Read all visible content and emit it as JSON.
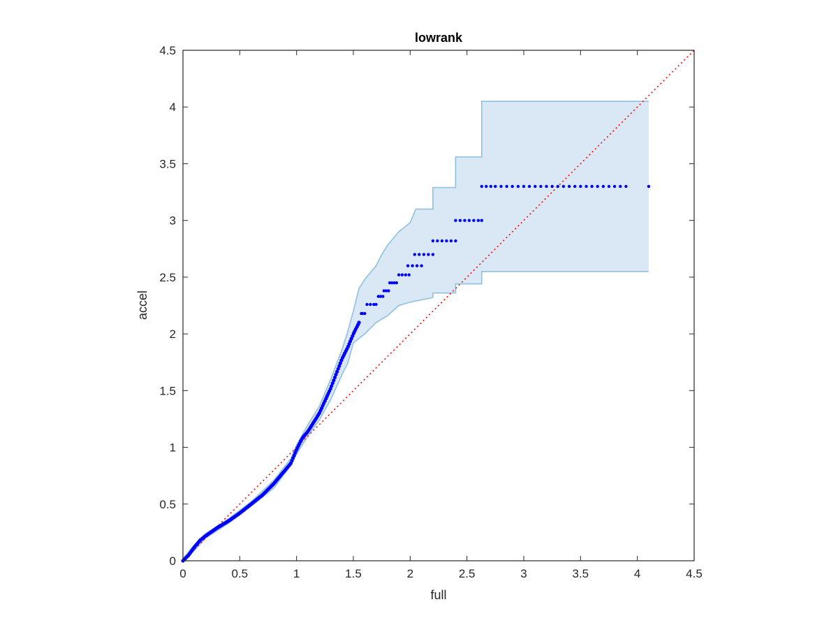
{
  "chart_data": {
    "type": "scatter",
    "title": "lowrank",
    "xlabel": "full",
    "ylabel": "accel",
    "xlim": [
      0,
      4.5
    ],
    "ylim": [
      0,
      4.5
    ],
    "xticks": [
      0,
      0.5,
      1,
      1.5,
      2,
      2.5,
      3,
      3.5,
      4,
      4.5
    ],
    "yticks": [
      0,
      0.5,
      1,
      1.5,
      2,
      2.5,
      3,
      3.5,
      4,
      4.5
    ],
    "xtick_labels": [
      "0",
      "0.5",
      "1",
      "1.5",
      "2",
      "2.5",
      "3",
      "3.5",
      "4",
      "4.5"
    ],
    "ytick_labels": [
      "0",
      "0.5",
      "1",
      "1.5",
      "2",
      "2.5",
      "3",
      "3.5",
      "4",
      "4.5"
    ],
    "grid": false,
    "legend": "none",
    "colors": {
      "points": "#0000ff",
      "band_fill": "#d9e8f4",
      "band_edge": "#8ec0e0",
      "reference_line": "#ff0000",
      "axes": "#262626"
    },
    "reference_line": {
      "style": "dotted",
      "from": [
        0,
        0
      ],
      "to": [
        4.5,
        4.5
      ]
    },
    "curve_knots": [
      [
        0,
        0
      ],
      [
        0.05,
        0.05
      ],
      [
        0.1,
        0.12
      ],
      [
        0.15,
        0.18
      ],
      [
        0.2,
        0.22
      ],
      [
        0.3,
        0.29
      ],
      [
        0.4,
        0.35
      ],
      [
        0.5,
        0.42
      ],
      [
        0.6,
        0.5
      ],
      [
        0.7,
        0.58
      ],
      [
        0.8,
        0.68
      ],
      [
        0.9,
        0.8
      ],
      [
        0.95,
        0.86
      ],
      [
        1.0,
        0.98
      ],
      [
        1.05,
        1.08
      ],
      [
        1.1,
        1.14
      ],
      [
        1.2,
        1.3
      ],
      [
        1.3,
        1.52
      ],
      [
        1.4,
        1.78
      ],
      [
        1.45,
        1.88
      ],
      [
        1.5,
        2.0
      ],
      [
        1.55,
        2.1
      ]
    ],
    "step_points": [
      {
        "x": [
          1.57,
          1.58,
          1.6
        ],
        "y": 2.18
      },
      {
        "x": [
          1.62,
          1.65,
          1.68,
          1.7
        ],
        "y": 2.26
      },
      {
        "x": [
          1.72,
          1.74,
          1.76
        ],
        "y": 2.33
      },
      {
        "x": [
          1.77,
          1.79,
          1.81
        ],
        "y": 2.38
      },
      {
        "x": [
          1.82,
          1.84,
          1.86,
          1.88
        ],
        "y": 2.45
      },
      {
        "x": [
          1.9,
          1.93,
          1.96,
          1.99
        ],
        "y": 2.52
      },
      {
        "x": [
          1.98,
          2.02,
          2.06,
          2.1
        ],
        "y": 2.6
      },
      {
        "x": [
          2.04,
          2.08,
          2.12,
          2.16,
          2.2
        ],
        "y": 2.7
      },
      {
        "x": [
          2.2,
          2.24,
          2.28,
          2.32,
          2.36,
          2.4
        ],
        "y": 2.82
      },
      {
        "x": [
          2.4,
          2.44,
          2.48,
          2.52,
          2.56,
          2.6,
          2.63
        ],
        "y": 3.0
      },
      {
        "x": [
          2.63,
          2.67,
          2.71,
          2.75,
          2.8,
          2.85,
          2.9,
          2.95,
          3.0,
          3.05,
          3.1,
          3.15,
          3.2,
          3.25,
          3.3,
          3.35,
          3.4,
          3.45,
          3.5,
          3.55,
          3.6,
          3.65,
          3.7,
          3.75,
          3.8,
          3.85,
          3.9,
          4.1
        ],
        "y": 3.3
      }
    ],
    "band_upper": [
      [
        0,
        0.02
      ],
      [
        0.1,
        0.14
      ],
      [
        0.2,
        0.24
      ],
      [
        0.4,
        0.37
      ],
      [
        0.6,
        0.52
      ],
      [
        0.8,
        0.71
      ],
      [
        0.95,
        0.9
      ],
      [
        1.0,
        1.02
      ],
      [
        1.1,
        1.2
      ],
      [
        1.2,
        1.36
      ],
      [
        1.3,
        1.6
      ],
      [
        1.4,
        1.86
      ],
      [
        1.45,
        2.02
      ],
      [
        1.5,
        2.2
      ],
      [
        1.55,
        2.4
      ],
      [
        1.6,
        2.48
      ],
      [
        1.7,
        2.6
      ],
      [
        1.75,
        2.7
      ],
      [
        1.8,
        2.78
      ],
      [
        1.9,
        2.9
      ],
      [
        2.0,
        2.98
      ],
      [
        2.05,
        3.1
      ],
      [
        2.2,
        3.1
      ],
      [
        2.2,
        3.29
      ],
      [
        2.4,
        3.29
      ],
      [
        2.4,
        3.56
      ],
      [
        2.63,
        3.56
      ],
      [
        2.63,
        4.05
      ],
      [
        4.1,
        4.05
      ]
    ],
    "band_lower": [
      [
        4.1,
        2.55
      ],
      [
        2.63,
        2.55
      ],
      [
        2.63,
        2.44
      ],
      [
        2.4,
        2.44
      ],
      [
        2.4,
        2.36
      ],
      [
        2.2,
        2.36
      ],
      [
        2.2,
        2.32
      ],
      [
        2.1,
        2.3
      ],
      [
        2.0,
        2.28
      ],
      [
        1.9,
        2.25
      ],
      [
        1.8,
        2.16
      ],
      [
        1.7,
        2.1
      ],
      [
        1.6,
        2.0
      ],
      [
        1.5,
        1.92
      ],
      [
        1.45,
        1.74
      ],
      [
        1.4,
        1.64
      ],
      [
        1.3,
        1.42
      ],
      [
        1.2,
        1.24
      ],
      [
        1.1,
        1.1
      ],
      [
        1.0,
        0.94
      ],
      [
        0.95,
        0.84
      ],
      [
        0.8,
        0.64
      ],
      [
        0.6,
        0.48
      ],
      [
        0.4,
        0.33
      ],
      [
        0.2,
        0.2
      ],
      [
        0.1,
        0.09
      ],
      [
        0,
        0
      ]
    ]
  }
}
